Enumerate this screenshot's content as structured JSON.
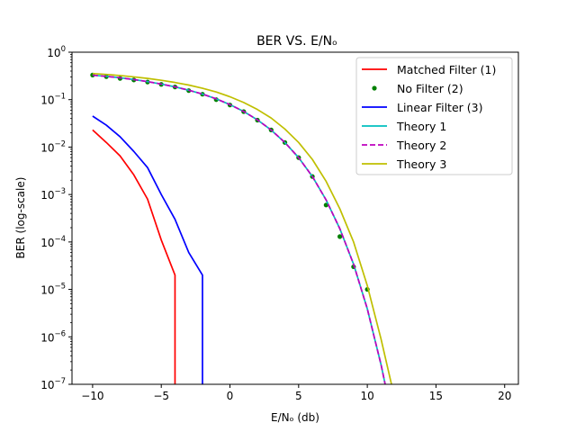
{
  "chart_data": {
    "type": "line",
    "title": "BER VS. E/Nₒ",
    "xlabel": "E/Nₒ (db)",
    "ylabel": "BER (log-scale)",
    "xlim": [
      -11.5,
      21
    ],
    "ylim": [
      1e-07,
      1
    ],
    "yscale": "log",
    "grid": false,
    "legend_position": "top-right",
    "x_ticks": [
      -10,
      -5,
      0,
      5,
      10,
      15,
      20
    ],
    "x_tick_labels": [
      "−10",
      "−5",
      "0",
      "5",
      "10",
      "15",
      "20"
    ],
    "y_ticks": [
      {
        "base": "10",
        "exp": "0",
        "value": 1
      },
      {
        "base": "10",
        "exp": "−1",
        "value": 0.1
      },
      {
        "base": "10",
        "exp": "−2",
        "value": 0.01
      },
      {
        "base": "10",
        "exp": "−3",
        "value": 0.001
      },
      {
        "base": "10",
        "exp": "−4",
        "value": 0.0001
      },
      {
        "base": "10",
        "exp": "−5",
        "value": 1e-05
      },
      {
        "base": "10",
        "exp": "−6",
        "value": 1e-06
      },
      {
        "base": "10",
        "exp": "−7",
        "value": 1e-07
      }
    ],
    "series": [
      {
        "name": "Matched Filter (1)",
        "color": "#ff0000",
        "style": "solid",
        "x": [
          -10,
          -9,
          -8,
          -7,
          -6,
          -5,
          -4,
          -4
        ],
        "y": [
          0.023,
          0.0125,
          0.0065,
          0.0026,
          0.0008,
          0.00011,
          2e-05,
          1e-08
        ]
      },
      {
        "name": "No Filter (2)",
        "color": "#008000",
        "style": "markers",
        "x": [
          -10,
          -9,
          -8,
          -7,
          -6,
          -5,
          -4,
          -3,
          -2,
          -1,
          0,
          1,
          2,
          3,
          4,
          5,
          6,
          7,
          8,
          9,
          10
        ],
        "y": [
          0.33,
          0.305,
          0.28,
          0.26,
          0.235,
          0.21,
          0.185,
          0.155,
          0.13,
          0.1,
          0.077,
          0.056,
          0.037,
          0.023,
          0.0125,
          0.006,
          0.0024,
          0.0006,
          0.00013,
          3e-05,
          1e-05
        ]
      },
      {
        "name": "Linear Filter (3)",
        "color": "#0000ff",
        "style": "solid",
        "x": [
          -10,
          -9,
          -8,
          -7,
          -6,
          -5,
          -4,
          -3,
          -2,
          -2
        ],
        "y": [
          0.045,
          0.029,
          0.0165,
          0.0081,
          0.0037,
          0.001,
          0.0003,
          6e-05,
          2e-05,
          1e-08
        ]
      },
      {
        "name": "Theory 1",
        "color": "#00bfbf",
        "style": "solid",
        "x": [
          -10,
          -9,
          -8,
          -7,
          -6,
          -5,
          -4,
          -3,
          -2,
          -1,
          0,
          1,
          2,
          3,
          4,
          5,
          6,
          7,
          8,
          9,
          10,
          10.5,
          11,
          11.3
        ],
        "y": [
          0.327,
          0.31,
          0.289,
          0.265,
          0.24,
          0.213,
          0.186,
          0.158,
          0.131,
          0.104,
          0.0786,
          0.0563,
          0.0375,
          0.0229,
          0.0125,
          0.006,
          0.0024,
          0.00077,
          0.00019,
          3.4e-05,
          3.9e-06,
          1e-06,
          2.6e-07,
          1e-07
        ]
      },
      {
        "name": "Theory 2",
        "color": "#bf00bf",
        "style": "dashed",
        "x": [
          -10,
          -9,
          -8,
          -7,
          -6,
          -5,
          -4,
          -3,
          -2,
          -1,
          0,
          1,
          2,
          3,
          4,
          5,
          6,
          7,
          8,
          9,
          10,
          10.5,
          11,
          11.3
        ],
        "y": [
          0.327,
          0.31,
          0.289,
          0.265,
          0.24,
          0.213,
          0.186,
          0.158,
          0.131,
          0.104,
          0.0786,
          0.0563,
          0.0375,
          0.0229,
          0.0125,
          0.006,
          0.0024,
          0.00077,
          0.00019,
          3.4e-05,
          3.9e-06,
          1e-06,
          2.6e-07,
          1e-07
        ]
      },
      {
        "name": "Theory 3",
        "color": "#bfbf00",
        "style": "solid",
        "x": [
          -10,
          -9,
          -8,
          -7,
          -6,
          -5,
          -4,
          -3,
          -2,
          -1,
          0,
          1,
          2,
          3,
          4,
          5,
          6,
          7,
          8,
          9,
          10,
          11,
          12,
          12.5
        ],
        "y": [
          0.355,
          0.34,
          0.322,
          0.302,
          0.28,
          0.256,
          0.23,
          0.203,
          0.174,
          0.145,
          0.115,
          0.087,
          0.062,
          0.041,
          0.024,
          0.0125,
          0.0055,
          0.0019,
          0.0005,
          0.0001,
          1.2e-05,
          9e-07,
          5e-08,
          1e-07
        ]
      }
    ]
  }
}
